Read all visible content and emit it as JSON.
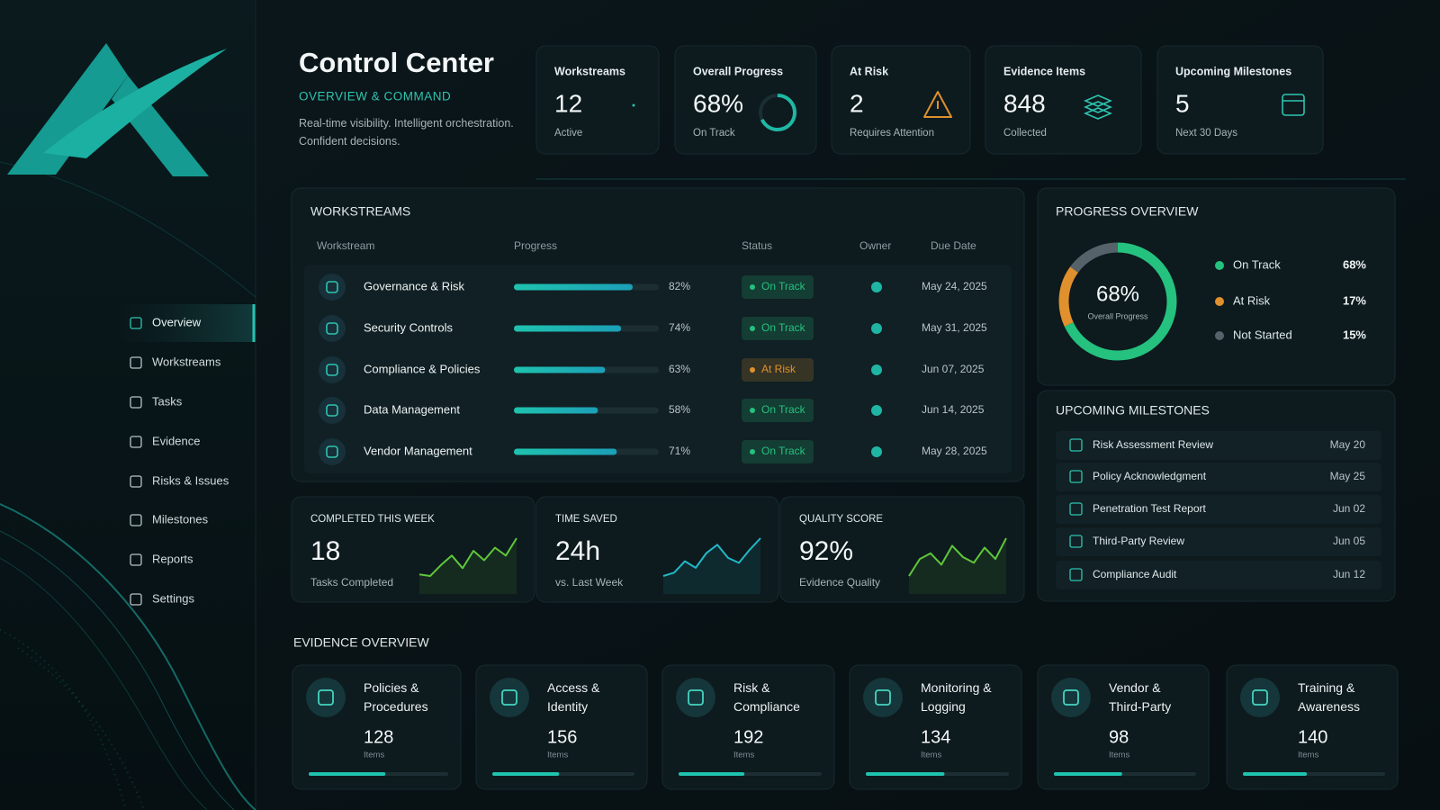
{
  "sidebar": {
    "nav": [
      "Overview",
      "Workstreams",
      "Tasks",
      "Evidence",
      "Risks & Issues",
      "Milestones",
      "Reports",
      "Settings"
    ]
  },
  "header": {
    "title": "Control Center",
    "subtitle": "OVERVIEW & COMMAND",
    "description": "Real-time visibility. Intelligent orchestration. Confident decisions."
  },
  "kpis": [
    {
      "label": "Workstreams",
      "value": "12",
      "caption": "Active"
    },
    {
      "label": "Overall Progress",
      "value": "68%",
      "caption": "On Track"
    },
    {
      "label": "At Risk",
      "value": "2",
      "caption": "Requires Attention"
    },
    {
      "label": "Evidence Items",
      "value": "848",
      "caption": "Collected"
    },
    {
      "label": "Upcoming Milestones",
      "value": "5",
      "caption": "Next 30 Days"
    }
  ],
  "workstreams": {
    "title": "WORKSTREAMS",
    "columns": [
      "Workstream",
      "Progress",
      "Status",
      "Owner",
      "Due Date"
    ],
    "rows": [
      {
        "name": "Governance & Risk",
        "progress": 82,
        "progress_label": "82%",
        "status": "On Track",
        "due": "May 24, 2025"
      },
      {
        "name": "Security Controls",
        "progress": 74,
        "progress_label": "74%",
        "status": "On Track",
        "due": "May 31, 2025"
      },
      {
        "name": "Compliance & Policies",
        "progress": 63,
        "progress_label": "63%",
        "status": "At Risk",
        "due": "Jun 07, 2025"
      },
      {
        "name": "Data Management",
        "progress": 58,
        "progress_label": "58%",
        "status": "On Track",
        "due": "Jun 14, 2025"
      },
      {
        "name": "Vendor Management",
        "progress": 71,
        "progress_label": "71%",
        "status": "On Track",
        "due": "May 28, 2025"
      }
    ]
  },
  "progress_overview": {
    "title": "PROGRESS OVERVIEW",
    "center_value": "68%",
    "center_label": "Overall Progress",
    "segments": [
      {
        "name": "On Track",
        "value": 68,
        "label": "68%",
        "color": "#25c17e"
      },
      {
        "name": "At Risk",
        "value": 17,
        "label": "17%",
        "color": "#e0902c"
      },
      {
        "name": "Not Started",
        "value": 15,
        "label": "15%",
        "color": "#56626a"
      }
    ]
  },
  "milestones": {
    "title": "UPCOMING MILESTONES",
    "items": [
      {
        "name": "Risk Assessment Review",
        "date": "May 20"
      },
      {
        "name": "Policy Acknowledgment",
        "date": "May 25"
      },
      {
        "name": "Penetration Test Report",
        "date": "Jun 02"
      },
      {
        "name": "Third-Party Review",
        "date": "Jun 05"
      },
      {
        "name": "Compliance Audit",
        "date": "Jun 12"
      }
    ]
  },
  "stats": [
    {
      "title": "COMPLETED THIS WEEK",
      "value": "18",
      "caption": "Tasks Completed",
      "color": "#5fc73a",
      "sparkline": [
        22,
        20,
        34,
        46,
        30,
        52,
        40,
        56,
        46,
        68
      ]
    },
    {
      "title": "TIME SAVED",
      "value": "24h",
      "caption": "vs. Last Week",
      "color": "#22b8c6",
      "sparkline": [
        20,
        24,
        38,
        30,
        48,
        58,
        42,
        36,
        52,
        66
      ]
    },
    {
      "title": "QUALITY SCORE",
      "value": "92%",
      "caption": "Evidence Quality",
      "color": "#5fc73a",
      "sparkline": [
        26,
        44,
        50,
        38,
        58,
        46,
        40,
        56,
        44,
        66
      ]
    }
  ],
  "evidence": {
    "title": "EVIDENCE OVERVIEW",
    "unit": "Items",
    "items": [
      {
        "name": "Policies & Procedures",
        "count": 128,
        "fill": 55
      },
      {
        "name": "Access & Identity",
        "count": 156,
        "fill": 47
      },
      {
        "name": "Risk & Compliance",
        "count": 192,
        "fill": 46
      },
      {
        "name": "Monitoring & Logging",
        "count": 134,
        "fill": 55
      },
      {
        "name": "Vendor & Third-Party",
        "count": 98,
        "fill": 48
      },
      {
        "name": "Training & Awareness",
        "count": 140,
        "fill": 45
      }
    ]
  }
}
